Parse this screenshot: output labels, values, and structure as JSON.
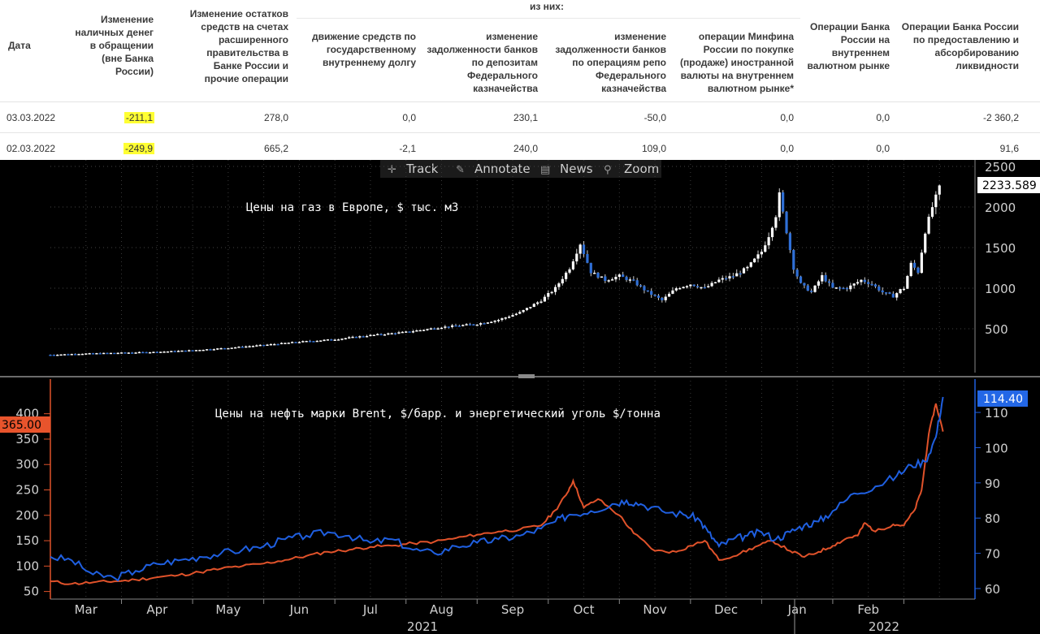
{
  "table": {
    "subheader": "из них:",
    "columns": [
      "Дата",
      "Изменение наличных денег в обращении (вне Банка России)",
      "Изменение остатков средств на счетах расширенного правительства в Банке России и прочие операции",
      "движение средств по государственному внутреннему долгу",
      "изменение задолженности банков по депозитам Федерального казначейства",
      "изменение задолженности банков по операциям репо Федерального казначейства",
      "операции Минфина России по покупке (продаже) иностранной валюты на внутреннем валютном рынке*",
      "Операции Банка России на внутреннем валютном рынке",
      "Операции Банка России по предоставлению и абсорбированию ликвидности"
    ],
    "rows": [
      [
        "03.03.2022",
        "-211,1",
        "278,0",
        "0,0",
        "230,1",
        "-50,0",
        "0,0",
        "0,0",
        "-2 360,2"
      ],
      [
        "02.03.2022",
        "-249,9",
        "665,2",
        "-2,1",
        "240,0",
        "109,0",
        "0,0",
        "0,0",
        "91,6"
      ]
    ]
  },
  "toolbar": {
    "track": "Track",
    "annotate": "Annotate",
    "news": "News",
    "zoom": "Zoom"
  },
  "colors": {
    "gas_candle_up": "#ffffff",
    "gas_candle_down": "#2f6fd6",
    "brent": "#1f5fe0",
    "coal": "#e0522a",
    "axis_text": "#d0d0d0"
  },
  "chart_data": [
    {
      "type": "candlestick",
      "title": "Цены на газ в Европе, $ тыс. м3",
      "ylim": [
        0,
        2500
      ],
      "yticks": [
        500,
        1000,
        1500,
        2000,
        2500
      ],
      "last_value_label": "2233.589",
      "x_range": [
        0,
        12
      ],
      "x_note": "x in months from 1 Mar 2021",
      "points": [
        [
          0.0,
          180
        ],
        [
          0.5,
          195
        ],
        [
          1.0,
          205
        ],
        [
          1.5,
          215
        ],
        [
          2.0,
          235
        ],
        [
          2.5,
          265
        ],
        [
          3.0,
          300
        ],
        [
          3.5,
          340
        ],
        [
          4.0,
          370
        ],
        [
          4.5,
          420
        ],
        [
          5.0,
          460
        ],
        [
          5.5,
          520
        ],
        [
          6.0,
          560
        ],
        [
          6.3,
          610
        ],
        [
          6.6,
          700
        ],
        [
          6.9,
          850
        ],
        [
          7.1,
          1000
        ],
        [
          7.3,
          1250
        ],
        [
          7.45,
          1550
        ],
        [
          7.6,
          1200
        ],
        [
          7.8,
          1100
        ],
        [
          8.0,
          1150
        ],
        [
          8.2,
          1080
        ],
        [
          8.4,
          950
        ],
        [
          8.6,
          850
        ],
        [
          8.8,
          1000
        ],
        [
          9.0,
          1050
        ],
        [
          9.2,
          1000
        ],
        [
          9.4,
          1100
        ],
        [
          9.6,
          1150
        ],
        [
          9.8,
          1250
        ],
        [
          10.0,
          1450
        ],
        [
          10.1,
          1650
        ],
        [
          10.2,
          1900
        ],
        [
          10.25,
          2150
        ],
        [
          10.35,
          1700
        ],
        [
          10.45,
          1250
        ],
        [
          10.55,
          1050
        ],
        [
          10.7,
          950
        ],
        [
          10.85,
          1150
        ],
        [
          11.0,
          1000
        ],
        [
          11.2,
          1000
        ],
        [
          11.4,
          1100
        ],
        [
          11.55,
          1050
        ],
        [
          11.7,
          950
        ],
        [
          11.85,
          900
        ],
        [
          11.95,
          980
        ],
        [
          12.0,
          1000
        ],
        [
          12.1,
          1300
        ],
        [
          12.2,
          1200
        ],
        [
          12.3,
          1700
        ],
        [
          12.4,
          2000
        ],
        [
          12.5,
          2233
        ]
      ]
    },
    {
      "type": "line",
      "title": "Цены на нефть марки Brent, $/барр. и энергетический уголь $/тонна",
      "x_range": [
        0,
        12
      ],
      "left_axis": {
        "ylim": [
          35,
          465
        ],
        "yticks": [
          50,
          100,
          150,
          200,
          250,
          300,
          350,
          400
        ],
        "last_value_label": "365.00"
      },
      "right_axis": {
        "ylim": [
          57,
          119
        ],
        "yticks": [
          60,
          70,
          80,
          90,
          100,
          110
        ],
        "last_value_label": "114.40"
      },
      "series": [
        {
          "name": "Brent",
          "axis": "right",
          "points": [
            [
              0,
              69
            ],
            [
              0.3,
              68
            ],
            [
              0.6,
              64
            ],
            [
              0.9,
              63
            ],
            [
              1.2,
              65
            ],
            [
              1.5,
              67
            ],
            [
              1.8,
              68
            ],
            [
              2.1,
              69
            ],
            [
              2.4,
              70
            ],
            [
              2.7,
              71
            ],
            [
              3.0,
              72
            ],
            [
              3.3,
              74
            ],
            [
              3.6,
              75
            ],
            [
              3.9,
              76
            ],
            [
              4.2,
              75
            ],
            [
              4.5,
              73
            ],
            [
              4.8,
              74
            ],
            [
              5.1,
              71
            ],
            [
              5.4,
              70
            ],
            [
              5.7,
              72
            ],
            [
              6.0,
              73
            ],
            [
              6.3,
              74
            ],
            [
              6.6,
              75
            ],
            [
              6.9,
              77
            ],
            [
              7.1,
              79
            ],
            [
              7.3,
              81
            ],
            [
              7.6,
              82
            ],
            [
              7.9,
              84
            ],
            [
              8.1,
              85
            ],
            [
              8.3,
              84
            ],
            [
              8.6,
              82
            ],
            [
              8.9,
              81
            ],
            [
              9.1,
              80
            ],
            [
              9.25,
              76
            ],
            [
              9.4,
              72
            ],
            [
              9.6,
              74
            ],
            [
              9.8,
              75
            ],
            [
              10.0,
              76
            ],
            [
              10.2,
              74
            ],
            [
              10.4,
              76
            ],
            [
              10.6,
              78
            ],
            [
              10.8,
              79
            ],
            [
              11.0,
              82
            ],
            [
              11.3,
              87
            ],
            [
              11.6,
              89
            ],
            [
              11.9,
              92
            ],
            [
              12.1,
              95
            ],
            [
              12.3,
              96
            ],
            [
              12.45,
              103
            ],
            [
              12.55,
              114.4
            ]
          ]
        },
        {
          "name": "Coal",
          "axis": "left",
          "points": [
            [
              0,
              70
            ],
            [
              0.3,
              65
            ],
            [
              0.6,
              68
            ],
            [
              0.9,
              70
            ],
            [
              1.2,
              73
            ],
            [
              1.5,
              78
            ],
            [
              1.8,
              82
            ],
            [
              2.1,
              88
            ],
            [
              2.4,
              95
            ],
            [
              2.7,
              100
            ],
            [
              3.0,
              105
            ],
            [
              3.3,
              112
            ],
            [
              3.6,
              120
            ],
            [
              3.9,
              128
            ],
            [
              4.2,
              132
            ],
            [
              4.5,
              138
            ],
            [
              4.8,
              140
            ],
            [
              5.1,
              145
            ],
            [
              5.4,
              148
            ],
            [
              5.7,
              155
            ],
            [
              6.0,
              162
            ],
            [
              6.3,
              168
            ],
            [
              6.6,
              172
            ],
            [
              6.9,
              180
            ],
            [
              7.1,
              210
            ],
            [
              7.25,
              240
            ],
            [
              7.35,
              268
            ],
            [
              7.5,
              215
            ],
            [
              7.7,
              232
            ],
            [
              8.0,
              200
            ],
            [
              8.2,
              165
            ],
            [
              8.5,
              130
            ],
            [
              8.8,
              128
            ],
            [
              9.0,
              140
            ],
            [
              9.2,
              150
            ],
            [
              9.4,
              112
            ],
            [
              9.7,
              125
            ],
            [
              9.95,
              140
            ],
            [
              10.15,
              150
            ],
            [
              10.4,
              130
            ],
            [
              10.6,
              118
            ],
            [
              10.8,
              128
            ],
            [
              11.0,
              140
            ],
            [
              11.2,
              155
            ],
            [
              11.35,
              160
            ],
            [
              11.45,
              185
            ],
            [
              11.6,
              168
            ],
            [
              11.85,
              182
            ],
            [
              12.0,
              180
            ],
            [
              12.15,
              210
            ],
            [
              12.25,
              250
            ],
            [
              12.35,
              360
            ],
            [
              12.45,
              420
            ],
            [
              12.55,
              365
            ]
          ]
        }
      ],
      "x_months": [
        "Mar",
        "Apr",
        "May",
        "Jun",
        "Jul",
        "Aug",
        "Sep",
        "Oct",
        "Nov",
        "Dec",
        "Jan",
        "Feb"
      ],
      "x_years": [
        "2021",
        "2022"
      ]
    }
  ]
}
